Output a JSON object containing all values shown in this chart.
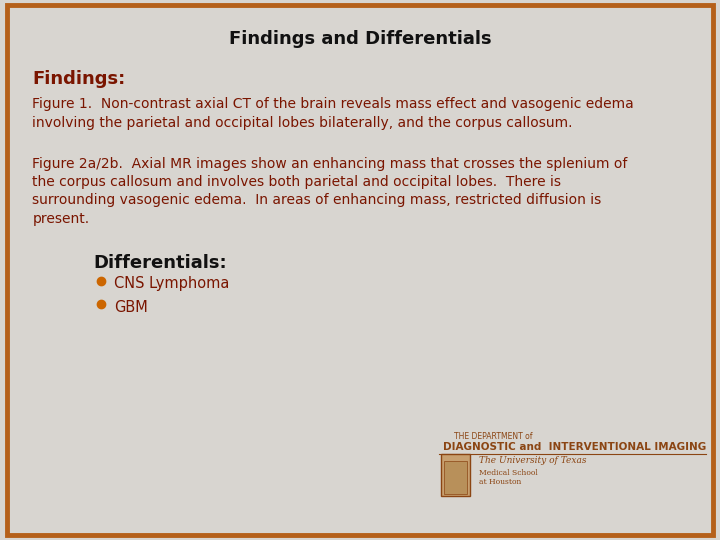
{
  "title": "Findings and Differentials",
  "title_fontsize": 13,
  "title_color": "#111111",
  "background_color": "#d8d5d0",
  "border_color": "#b5601a",
  "border_linewidth": 3.5,
  "findings_header": "Findings:",
  "findings_header_color": "#7a1500",
  "findings_header_fontsize": 13,
  "figure1_text": "Figure 1.  Non-contrast axial CT of the brain reveals mass effect and vasogenic edema\ninvolving the parietal and occipital lobes bilaterally, and the corpus callosum.",
  "figure2_text": "Figure 2a/2b.  Axial MR images show an enhancing mass that crosses the splenium of\nthe corpus callosum and involves both parietal and occipital lobes.  There is\nsurrounding vasogenic edema.  In areas of enhancing mass, restricted diffusion is\npresent.",
  "body_text_color": "#7a1500",
  "body_fontsize": 10,
  "differentials_header": "Differentials:",
  "differentials_header_color": "#111111",
  "differentials_header_fontsize": 13,
  "bullet_color": "#CC6600",
  "bullet_items": [
    "CNS Lymphoma",
    "GBM"
  ],
  "bullet_fontsize": 10.5,
  "bullet_text_color": "#7a1500",
  "footer_line1": "THE DEPARTMENT of",
  "footer_line2": "DIAGNOSTIC and  INTERVENTIONAL IMAGING",
  "footer_line3": "The University of Texas",
  "footer_line4": "Medical School",
  "footer_line5": "at Houston",
  "footer_color": "#8B4513",
  "footer_fontsize": 5.5,
  "footer_fontsize2": 7.5
}
